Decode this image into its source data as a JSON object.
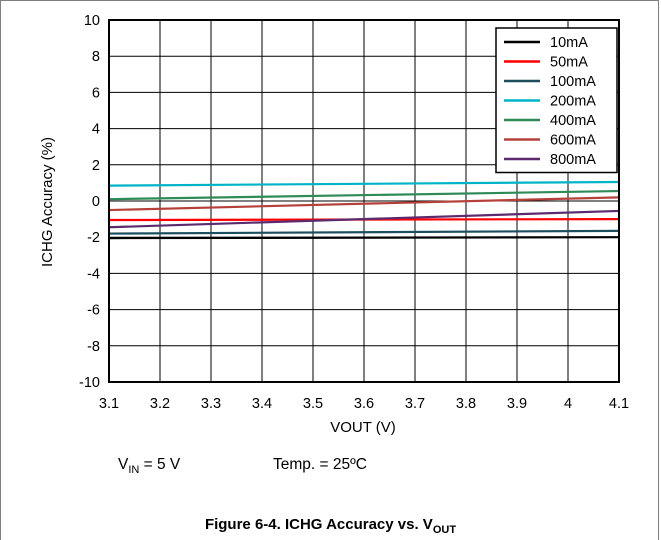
{
  "chart_data": {
    "type": "line",
    "ylabel": "ICHG Accuracy (%)",
    "xlabel": "VOUT (V)",
    "xlim": [
      3.1,
      4.1
    ],
    "ylim": [
      -10,
      10
    ],
    "xticks": [
      "3.1",
      "3.2",
      "3.3",
      "3.4",
      "3.5",
      "3.6",
      "3.7",
      "3.8",
      "3.9",
      "4",
      "4.1"
    ],
    "yticks": [
      "10",
      "8",
      "6",
      "4",
      "2",
      "0",
      "-2",
      "-4",
      "-6",
      "-8",
      "-10"
    ],
    "grid": true,
    "legend_position": "top-right",
    "series": [
      {
        "name": "10mA",
        "color": "#000000",
        "x": [
          3.1,
          4.1
        ],
        "y": [
          -2.05,
          -2.0
        ]
      },
      {
        "name": "50mA",
        "color": "#ff0000",
        "x": [
          3.1,
          4.1
        ],
        "y": [
          -1.05,
          -1.0
        ]
      },
      {
        "name": "100mA",
        "color": "#1d4e5f",
        "x": [
          3.1,
          4.1
        ],
        "y": [
          -1.8,
          -1.65
        ]
      },
      {
        "name": "200mA",
        "color": "#00b4c8",
        "x": [
          3.1,
          4.1
        ],
        "y": [
          0.85,
          1.05
        ]
      },
      {
        "name": "400mA",
        "color": "#2e8b57",
        "x": [
          3.1,
          4.1
        ],
        "y": [
          0.1,
          0.55
        ]
      },
      {
        "name": "600mA",
        "color": "#b5403a",
        "x": [
          3.1,
          4.1
        ],
        "y": [
          -0.5,
          0.2
        ]
      },
      {
        "name": "800mA",
        "color": "#5c2a6e",
        "x": [
          3.1,
          4.1
        ],
        "y": [
          -1.45,
          -0.55
        ]
      }
    ]
  },
  "conditions": {
    "vin_symbol": "V",
    "vin_sub": "IN",
    "vin_value": " = 5 V",
    "temp": "Temp. = 25ºC"
  },
  "caption": {
    "text": "Figure 6-4. ICHG Accuracy vs. V",
    "sub": "OUT"
  }
}
